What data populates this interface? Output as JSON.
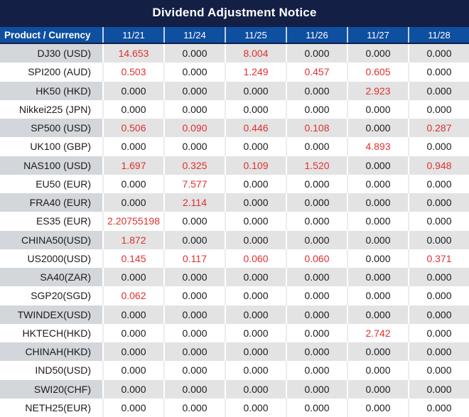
{
  "title": "Dividend Adjustment Notice",
  "table": {
    "product_header": "Product / Currency",
    "date_headers": [
      "11/21",
      "11/24",
      "11/25",
      "11/26",
      "11/27",
      "11/28"
    ],
    "rows": [
      {
        "product": "DJ30 (USD)",
        "values": [
          "14.653",
          "0.000",
          "8.004",
          "0.000",
          "0.000",
          "0.000"
        ]
      },
      {
        "product": "SPI200 (AUD)",
        "values": [
          "0.503",
          "0.000",
          "1.249",
          "0.457",
          "0.605",
          "0.000"
        ]
      },
      {
        "product": "HK50 (HKD)",
        "values": [
          "0.000",
          "0.000",
          "0.000",
          "0.000",
          "2.923",
          "0.000"
        ]
      },
      {
        "product": "Nikkei225 (JPN)",
        "values": [
          "0.000",
          "0.000",
          "0.000",
          "0.000",
          "0.000",
          "0.000"
        ]
      },
      {
        "product": "SP500 (USD)",
        "values": [
          "0.506",
          "0.090",
          "0.446",
          "0.108",
          "0.000",
          "0.287"
        ]
      },
      {
        "product": "UK100 (GBP)",
        "values": [
          "0.000",
          "0.000",
          "0.000",
          "0.000",
          "4.893",
          "0.000"
        ]
      },
      {
        "product": "NAS100 (USD)",
        "values": [
          "1.697",
          "0.325",
          "0.109",
          "1.520",
          "0.000",
          "0.948"
        ]
      },
      {
        "product": "EU50 (EUR)",
        "values": [
          "0.000",
          "7.577",
          "0.000",
          "0.000",
          "0.000",
          "0.000"
        ]
      },
      {
        "product": "FRA40 (EUR)",
        "values": [
          "0.000",
          "2.114",
          "0.000",
          "0.000",
          "0.000",
          "0.000"
        ]
      },
      {
        "product": "ES35 (EUR)",
        "values": [
          "2.20755198",
          "0.000",
          "0.000",
          "0.000",
          "0.000",
          "0.000"
        ]
      },
      {
        "product": "CHINA50(USD)",
        "values": [
          "1.872",
          "0.000",
          "0.000",
          "0.000",
          "0.000",
          "0.000"
        ]
      },
      {
        "product": "US2000(USD)",
        "values": [
          "0.145",
          "0.117",
          "0.060",
          "0.060",
          "0.000",
          "0.371"
        ]
      },
      {
        "product": "SA40(ZAR)",
        "values": [
          "0.000",
          "0.000",
          "0.000",
          "0.000",
          "0.000",
          "0.000"
        ]
      },
      {
        "product": "SGP20(SGD)",
        "values": [
          "0.062",
          "0.000",
          "0.000",
          "0.000",
          "0.000",
          "0.000"
        ]
      },
      {
        "product": "TWINDEX(USD)",
        "values": [
          "0.000",
          "0.000",
          "0.000",
          "0.000",
          "0.000",
          "0.000"
        ]
      },
      {
        "product": "HKTECH(HKD)",
        "values": [
          "0.000",
          "0.000",
          "0.000",
          "0.000",
          "2.742",
          "0.000"
        ]
      },
      {
        "product": "CHINAH(HKD)",
        "values": [
          "0.000",
          "0.000",
          "0.000",
          "0.000",
          "0.000",
          "0.000"
        ]
      },
      {
        "product": "IND50(USD)",
        "values": [
          "0.000",
          "0.000",
          "0.000",
          "0.000",
          "0.000",
          "0.000"
        ]
      },
      {
        "product": "SWI20(CHF)",
        "values": [
          "0.000",
          "0.000",
          "0.000",
          "0.000",
          "0.000",
          "0.000"
        ]
      },
      {
        "product": "NETH25(EUR)",
        "values": [
          "0.000",
          "0.000",
          "0.000",
          "0.000",
          "0.000",
          "0.000"
        ]
      }
    ]
  },
  "colors": {
    "title_bg": "#131f45",
    "header_bg": "#0e4fa0",
    "gray_cell": "#e3e3e3",
    "gray_product": "#d3d6db",
    "red": "#e03030",
    "text": "#1b1b1b"
  }
}
